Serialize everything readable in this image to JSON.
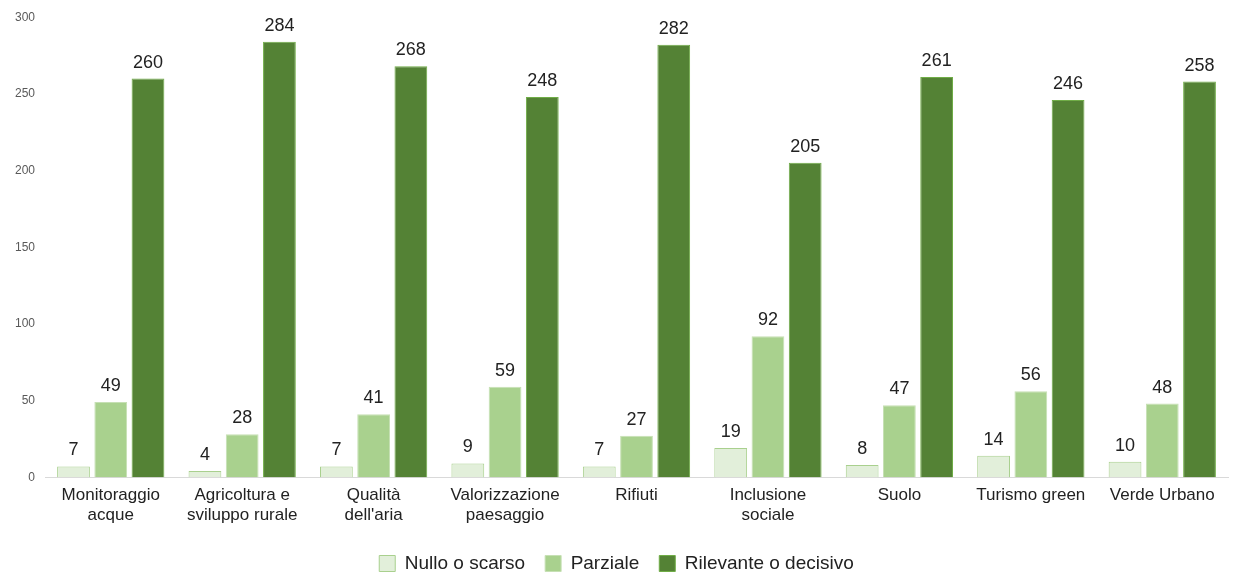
{
  "chart_data": {
    "type": "bar",
    "categories": [
      "Monitoraggio acque",
      "Agricoltura e sviluppo rurale",
      "Qualità dell'aria",
      "Valorizzazione paesaggio",
      "Rifiuti",
      "Inclusione sociale",
      "Suolo",
      "Turismo green",
      "Verde Urbano"
    ],
    "series": [
      {
        "name": "Nullo o scarso",
        "color": "#e2efda",
        "values": [
          7,
          4,
          7,
          9,
          7,
          19,
          8,
          14,
          10
        ]
      },
      {
        "name": "Parziale",
        "color": "#a9d18e",
        "values": [
          49,
          28,
          41,
          59,
          27,
          92,
          47,
          56,
          48
        ]
      },
      {
        "name": "Rilevante o decisivo",
        "color": "#548235",
        "values": [
          260,
          284,
          268,
          248,
          282,
          205,
          261,
          246,
          258
        ]
      }
    ],
    "ylim": [
      0,
      300
    ],
    "yticks": [
      0,
      50,
      100,
      150,
      200,
      250,
      300
    ],
    "grid": false,
    "legend": "bottom",
    "data_labels": true
  }
}
